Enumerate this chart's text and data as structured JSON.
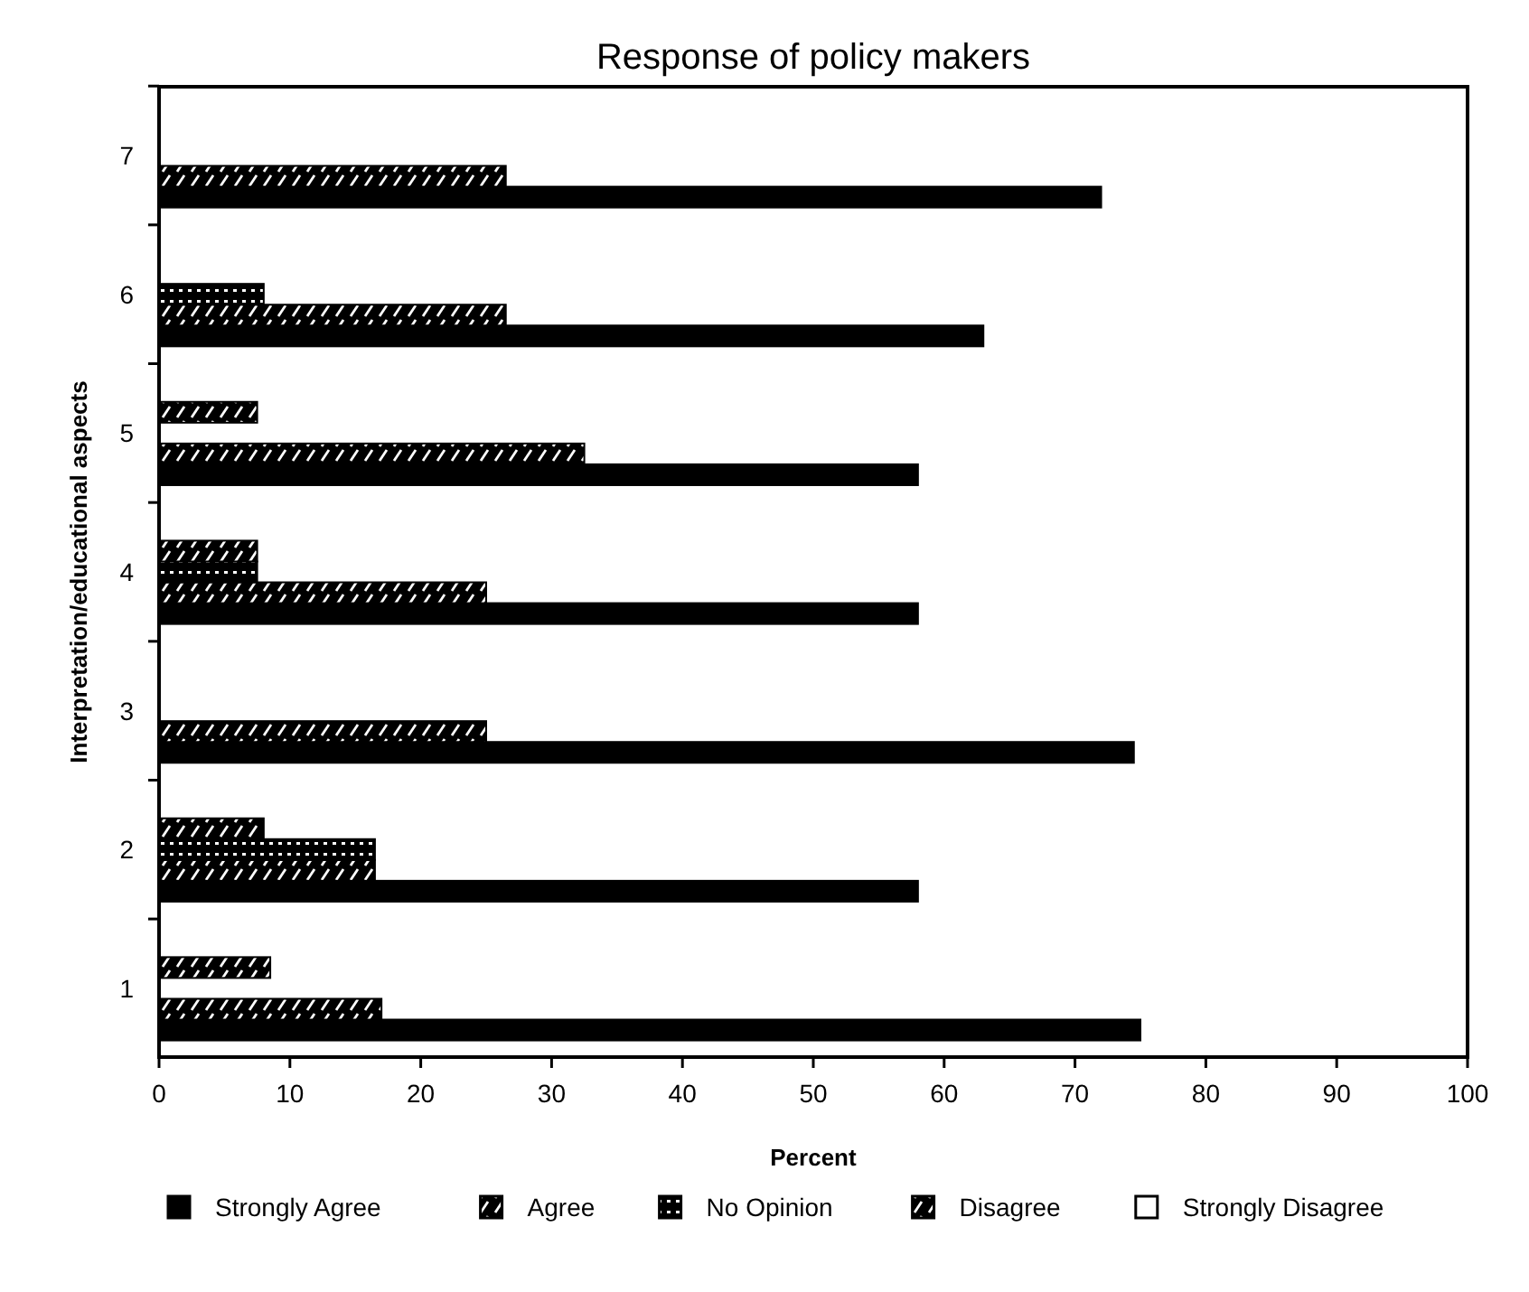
{
  "chart_data": {
    "type": "bar",
    "orientation": "horizontal",
    "title": "Response of policy makers",
    "xlabel": "Percent",
    "ylabel": "Interpretation/educational aspects",
    "categories": [
      "7",
      "6",
      "5",
      "4",
      "3",
      "2",
      "1"
    ],
    "xlim": [
      0,
      100
    ],
    "xticks": [
      0,
      10,
      20,
      30,
      40,
      50,
      60,
      70,
      80,
      90,
      100
    ],
    "grid": false,
    "legend": "bottom",
    "series": [
      {
        "name": "Strongly Agree",
        "color": "#000000",
        "values": [
          72,
          63,
          58,
          58,
          74.5,
          58,
          75
        ]
      },
      {
        "name": "Agree",
        "color": "#000000",
        "values": [
          26.5,
          26.5,
          32.5,
          25,
          25,
          16.5,
          17
        ]
      },
      {
        "name": "No Opinion",
        "color": "#000000",
        "values": [
          null,
          8,
          null,
          7.5,
          null,
          16.5,
          null
        ]
      },
      {
        "name": "Disagree",
        "color": "#000000",
        "values": [
          null,
          null,
          7.5,
          7.5,
          null,
          8,
          8.5
        ]
      },
      {
        "name": "Strongly Disagree",
        "color": "#ffffff",
        "values": [
          null,
          null,
          null,
          null,
          null,
          null,
          null
        ]
      }
    ]
  }
}
